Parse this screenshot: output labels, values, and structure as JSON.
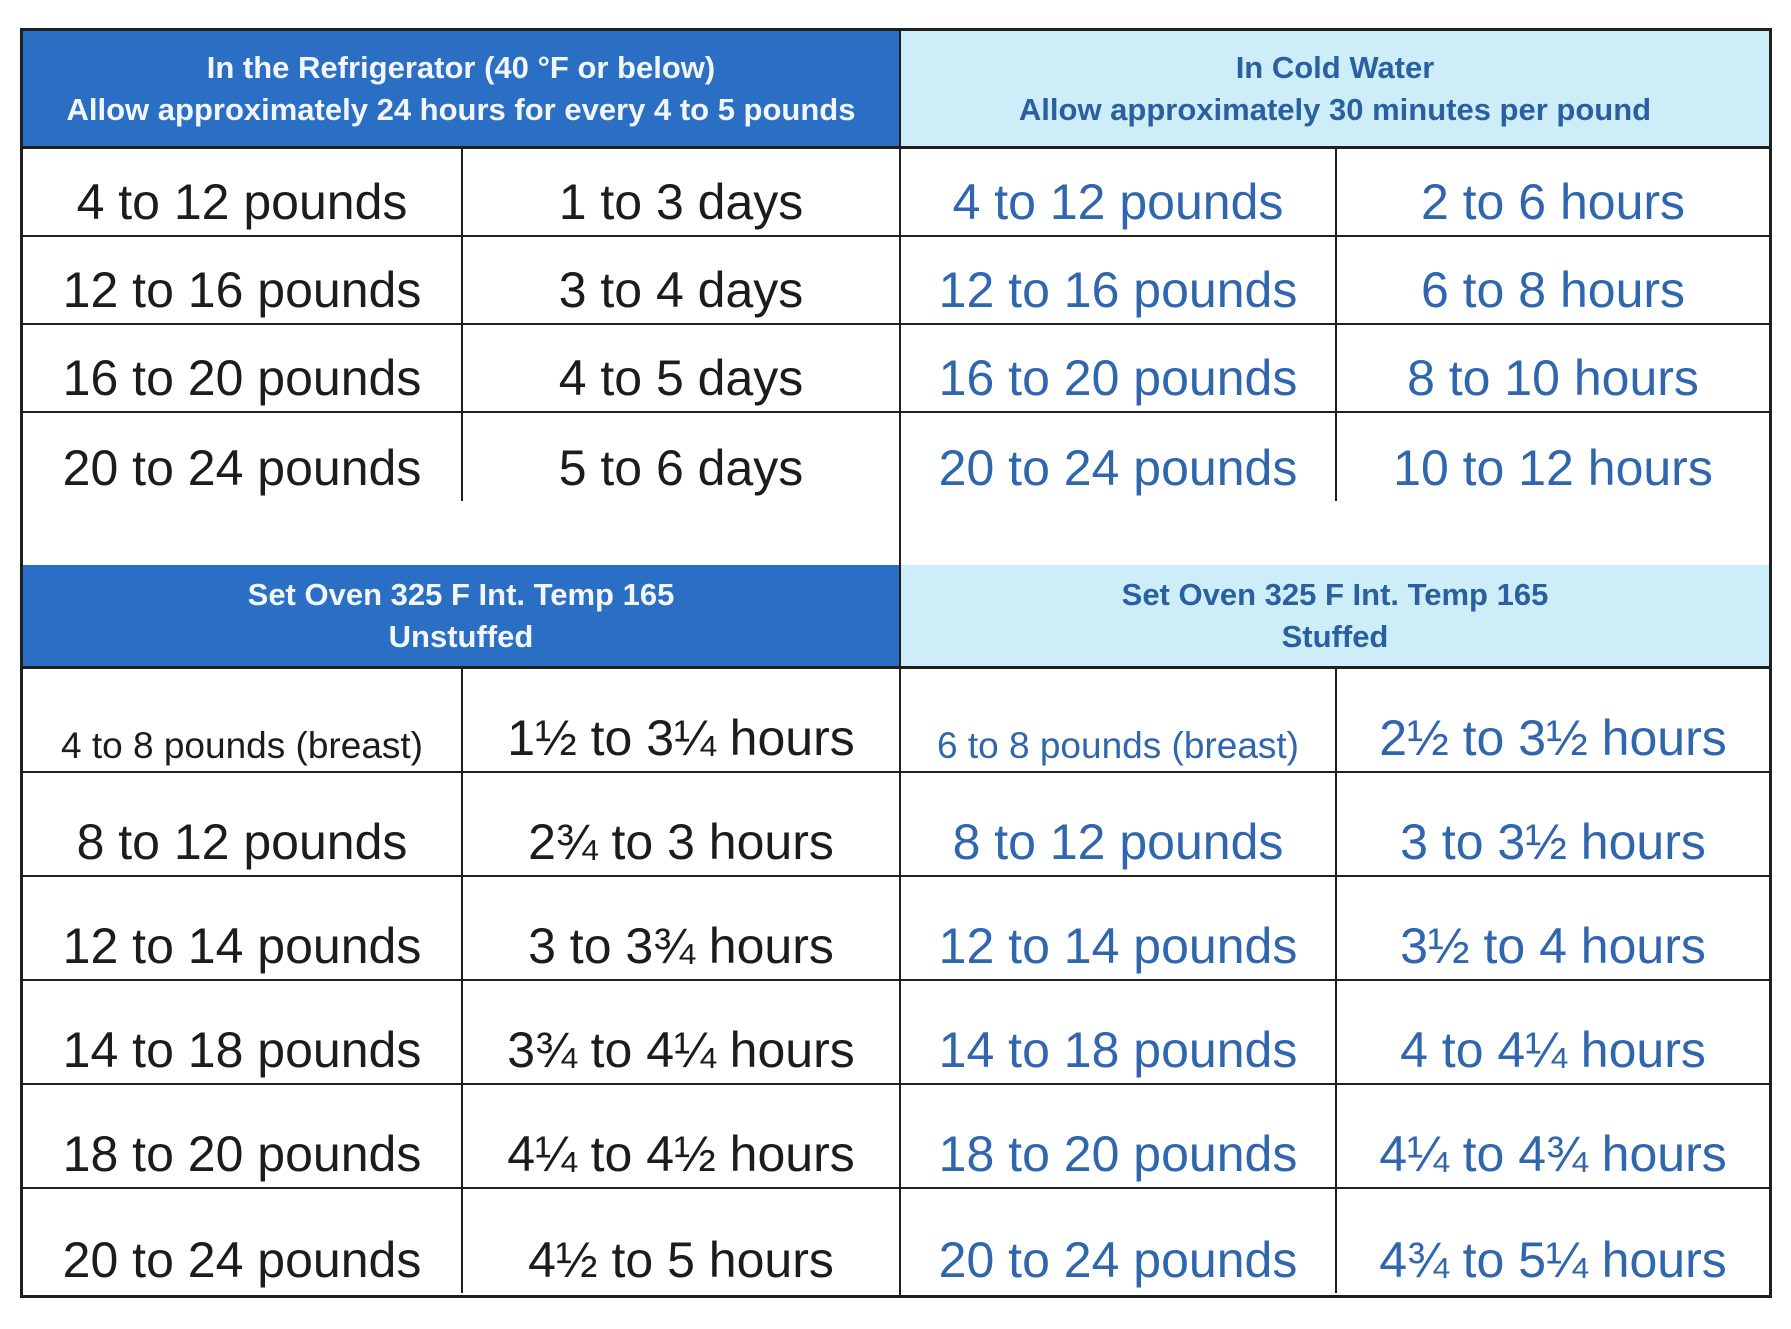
{
  "refrigerator": {
    "title": "In the Refrigerator (40 °F or below)",
    "subtitle": "Allow approximately 24 hours for every 4 to 5 pounds",
    "rows": [
      {
        "weight": "4 to 12 pounds",
        "time": "1 to 3 days"
      },
      {
        "weight": "12 to 16 pounds",
        "time": "3 to 4 days"
      },
      {
        "weight": "16 to 20 pounds",
        "time": "4 to 5 days"
      },
      {
        "weight": "20 to 24 pounds",
        "time": "5 to 6 days"
      }
    ]
  },
  "cold_water": {
    "title": "In Cold Water",
    "subtitle": "Allow approximately 30 minutes per pound",
    "rows": [
      {
        "weight": "4 to 12 pounds",
        "time": "2 to 6 hours"
      },
      {
        "weight": "12 to 16 pounds",
        "time": "6 to 8 hours"
      },
      {
        "weight": "16 to 20 pounds",
        "time": "8 to 10 hours"
      },
      {
        "weight": "20 to 24 pounds",
        "time": "10 to 12 hours"
      }
    ]
  },
  "unstuffed": {
    "title": "Set Oven 325 F  Int. Temp 165",
    "subtitle": "Unstuffed",
    "rows": [
      {
        "weight": "4 to 8 pounds (breast)",
        "time": "1½ to 3¼ hours"
      },
      {
        "weight": "8 to 12 pounds",
        "time": "2¾ to 3 hours"
      },
      {
        "weight": "12 to 14 pounds",
        "time": "3 to 3¾ hours"
      },
      {
        "weight": "14 to 18 pounds",
        "time": "3¾ to 4¼ hours"
      },
      {
        "weight": "18 to 20 pounds",
        "time": "4¼ to 4½ hours"
      },
      {
        "weight": "20 to 24 pounds",
        "time": "4½ to 5 hours"
      }
    ]
  },
  "stuffed": {
    "title": "Set Oven 325 F  Int. Temp 165",
    "subtitle": "Stuffed",
    "rows": [
      {
        "weight": "6 to 8 pounds (breast)",
        "time": "2½ to 3½ hours"
      },
      {
        "weight": "8 to 12 pounds",
        "time": "3 to 3½ hours"
      },
      {
        "weight": "12 to 14 pounds",
        "time": "3½ to 4 hours"
      },
      {
        "weight": "14 to 18 pounds",
        "time": "4 to 4¼ hours"
      },
      {
        "weight": "18 to 20 pounds",
        "time": "4¼ to 4¾ hours"
      },
      {
        "weight": "20 to 24 pounds",
        "time": "4¾ to 5¼ hours"
      }
    ]
  },
  "colors": {
    "dark_header": "#2a6fc4",
    "light_header": "#cdeef8",
    "left_text": "#1c1c1c",
    "right_text": "#2f66ad"
  }
}
